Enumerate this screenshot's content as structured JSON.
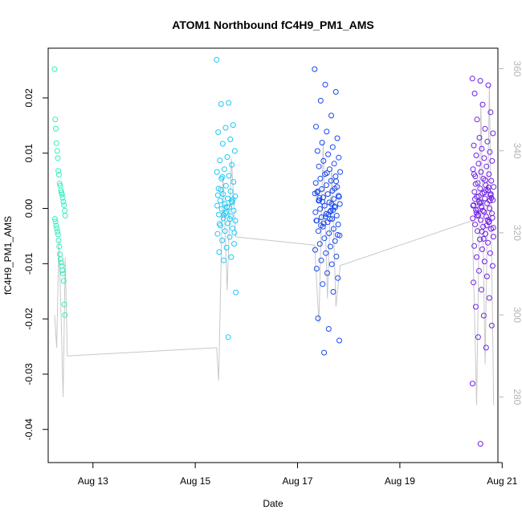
{
  "chart_data": {
    "type": "scatter",
    "title": "ATOM1 Northbound fC4H9_PM1_AMS",
    "xlabel": "Date",
    "ylabel": "fC4H9_PM1_AMS",
    "x_type": "date",
    "xlim": [
      "2019-08-12 03:00",
      "2019-08-20 22:00"
    ],
    "ylim": [
      -0.046,
      0.029
    ],
    "x_ticks": [
      {
        "date": "2019-08-13",
        "label": "Aug 13"
      },
      {
        "date": "2019-08-15",
        "label": "Aug 15"
      },
      {
        "date": "2019-08-17",
        "label": "Aug 17"
      },
      {
        "date": "2019-08-19",
        "label": "Aug 19"
      },
      {
        "date": "2019-08-21",
        "label": "Aug 21"
      }
    ],
    "y_ticks": [
      {
        "value": -0.04,
        "label": "-0.04"
      },
      {
        "value": -0.03,
        "label": "-0.03"
      },
      {
        "value": -0.02,
        "label": "-0.02"
      },
      {
        "value": -0.01,
        "label": "-0.01"
      },
      {
        "value": 0.0,
        "label": "0.00"
      },
      {
        "value": 0.01,
        "label": "0.01"
      },
      {
        "value": 0.02,
        "label": "0.02"
      }
    ],
    "y2_ticks": [
      {
        "value": 280,
        "label": "280"
      },
      {
        "value": 300,
        "label": "300"
      },
      {
        "value": 320,
        "label": "320"
      },
      {
        "value": 340,
        "label": "340"
      },
      {
        "value": 360,
        "label": "360"
      }
    ],
    "y2lim": [
      264,
      365
    ],
    "grid": false,
    "legend": "none",
    "marker": "open-circle",
    "color_scale": [
      "#30f0c0",
      "#1ec8f5",
      "#1848f0",
      "#7020e8"
    ],
    "line_color": "#c8c8c8",
    "series": [
      {
        "x_start": "2019-08-12 06:00",
        "x_end": "2019-08-12 11:00",
        "points": [
          0.0252,
          0.0161,
          0.0144,
          0.0118,
          0.0104,
          0.0091,
          0.0068,
          0.0061,
          0.0045,
          0.0041,
          0.0033,
          0.0029,
          0.0025,
          0.0019,
          0.0012,
          0.0006,
          -0.0004,
          -0.0013,
          -0.0019,
          -0.0024,
          -0.0031,
          -0.0036,
          -0.0042,
          -0.0047,
          -0.0058,
          -0.0069,
          -0.0083,
          -0.0092,
          -0.0098,
          -0.0104,
          -0.0112,
          -0.0118,
          -0.0131,
          -0.0174,
          -0.0193
        ]
      },
      {
        "x_start": "2019-08-15 10:00",
        "x_end": "2019-08-15 19:00",
        "points": [
          0.0269,
          0.0191,
          0.0189,
          0.0151,
          0.0146,
          0.0138,
          0.0125,
          0.0117,
          0.0104,
          0.0093,
          0.0087,
          0.0079,
          0.0071,
          0.0066,
          0.0059,
          0.0054,
          0.0048,
          0.0041,
          0.0036,
          0.0031,
          0.0026,
          0.0022,
          0.0018,
          0.0014,
          0.0011,
          0.0008,
          0.0005,
          0.0002,
          -0.0001,
          -0.0004,
          -0.0007,
          -0.0011,
          -0.0014,
          -0.0018,
          -0.0022,
          -0.0027,
          -0.0031,
          -0.0036,
          -0.0041,
          -0.0046,
          -0.0052,
          -0.0058,
          -0.0064,
          -0.0071,
          -0.0079,
          -0.0088,
          -0.0094,
          -0.0152,
          -0.0233,
          0.0034,
          0.0016,
          -0.0009,
          0.0024,
          -0.0019,
          0.0057,
          -0.0044,
          0.0003,
          -0.0028,
          0.0013,
          -0.0012
        ]
      },
      {
        "x_start": "2019-08-17 08:00",
        "x_end": "2019-08-17 20:00",
        "points": [
          0.0252,
          0.0224,
          0.0211,
          0.0195,
          0.0168,
          0.0148,
          0.0139,
          0.0127,
          0.0119,
          0.0111,
          0.0104,
          0.0098,
          0.0092,
          0.0086,
          0.0081,
          0.0076,
          0.0071,
          0.0066,
          0.0062,
          0.0058,
          0.0054,
          0.005,
          0.0046,
          0.0042,
          0.0039,
          0.0035,
          0.0032,
          0.0029,
          0.0026,
          0.0023,
          0.002,
          0.0017,
          0.0014,
          0.0011,
          0.0008,
          0.0005,
          0.0002,
          -0.0001,
          -0.0004,
          -0.0007,
          -0.001,
          -0.0013,
          -0.0016,
          -0.0019,
          -0.0022,
          -0.0025,
          -0.0029,
          -0.0033,
          -0.0037,
          -0.0041,
          -0.0045,
          -0.0049,
          -0.0054,
          -0.0059,
          -0.0064,
          -0.0069,
          -0.0075,
          -0.0081,
          -0.0087,
          -0.0094,
          -0.0101,
          -0.0109,
          -0.0117,
          -0.0126,
          -0.0137,
          -0.0151,
          -0.0199,
          -0.0218,
          -0.0239,
          -0.0261,
          0.0036,
          0.0019,
          -0.0006,
          0.0027,
          -0.0015,
          0.0049,
          -0.0031,
          0.0008,
          -0.0022,
          0.0064,
          -0.0048,
          0.0012,
          -0.0003,
          0.0031,
          -0.0011,
          0.0021,
          -0.0027,
          0.0004,
          0.0015,
          -0.0019
        ]
      },
      {
        "x_start": "2019-08-20 10:00",
        "x_end": "2019-08-20 20:00",
        "points": [
          0.0235,
          0.0231,
          0.0223,
          0.0208,
          0.0188,
          0.0174,
          0.0161,
          0.0144,
          0.0136,
          0.0128,
          0.0121,
          0.0114,
          0.0108,
          0.0102,
          0.0096,
          0.0091,
          0.0086,
          0.0081,
          0.0076,
          0.0071,
          0.0066,
          0.0062,
          0.0058,
          0.0054,
          0.005,
          0.0046,
          0.0042,
          0.0039,
          0.0036,
          0.0033,
          0.003,
          0.0027,
          0.0024,
          0.0021,
          0.0018,
          0.0015,
          0.0012,
          0.0009,
          0.0006,
          0.0003,
          0.0,
          -0.0003,
          -0.0006,
          -0.0009,
          -0.0012,
          -0.0015,
          -0.0018,
          -0.0021,
          -0.0025,
          -0.0029,
          -0.0033,
          -0.0037,
          -0.0041,
          -0.0046,
          -0.0051,
          -0.0056,
          -0.0062,
          -0.0068,
          -0.0074,
          -0.0081,
          -0.0088,
          -0.0096,
          -0.0104,
          -0.0113,
          -0.0123,
          -0.0134,
          -0.0147,
          -0.0162,
          -0.0178,
          -0.0194,
          -0.0212,
          -0.0233,
          -0.0252,
          -0.0317,
          -0.0426,
          0.0038,
          0.0017,
          -0.0004,
          0.0026,
          -0.0013,
          0.0051,
          -0.0035,
          0.0009,
          -0.0021,
          0.0062,
          -0.0042,
          0.0014,
          -0.0008,
          0.0029,
          -0.0017,
          0.0022,
          -0.0031,
          0.0005,
          0.0011,
          -0.0024,
          0.0044,
          -0.0055,
          0.0019,
          -0.0002,
          0.0033
        ]
      }
    ],
    "line_path": [
      {
        "x": "2019-08-12 06:00",
        "y": 300
      },
      {
        "x": "2019-08-12 07:00",
        "y": 292
      },
      {
        "x": "2019-08-12 08:00",
        "y": 318
      },
      {
        "x": "2019-08-12 09:00",
        "y": 301
      },
      {
        "x": "2019-08-12 10:00",
        "y": 280
      },
      {
        "x": "2019-08-12 11:00",
        "y": 314
      },
      {
        "x": "2019-08-12 12:00",
        "y": 290
      },
      {
        "x": "2019-08-15 10:00",
        "y": 292
      },
      {
        "x": "2019-08-15 11:00",
        "y": 284
      },
      {
        "x": "2019-08-15 12:00",
        "y": 310
      },
      {
        "x": "2019-08-15 13:00",
        "y": 334
      },
      {
        "x": "2019-08-15 15:00",
        "y": 306
      },
      {
        "x": "2019-08-15 17:00",
        "y": 338
      },
      {
        "x": "2019-08-15 19:00",
        "y": 319
      },
      {
        "x": "2019-08-17 08:00",
        "y": 317
      },
      {
        "x": "2019-08-17 10:00",
        "y": 298
      },
      {
        "x": "2019-08-17 12:00",
        "y": 342
      },
      {
        "x": "2019-08-17 14:00",
        "y": 304
      },
      {
        "x": "2019-08-17 16:00",
        "y": 336
      },
      {
        "x": "2019-08-17 18:00",
        "y": 302
      },
      {
        "x": "2019-08-17 20:00",
        "y": 312
      },
      {
        "x": "2019-08-20 10:00",
        "y": 323
      },
      {
        "x": "2019-08-20 12:00",
        "y": 278
      },
      {
        "x": "2019-08-20 14:00",
        "y": 352
      },
      {
        "x": "2019-08-20 16:00",
        "y": 288
      },
      {
        "x": "2019-08-20 18:00",
        "y": 356
      },
      {
        "x": "2019-08-20 20:00",
        "y": 278
      }
    ]
  }
}
